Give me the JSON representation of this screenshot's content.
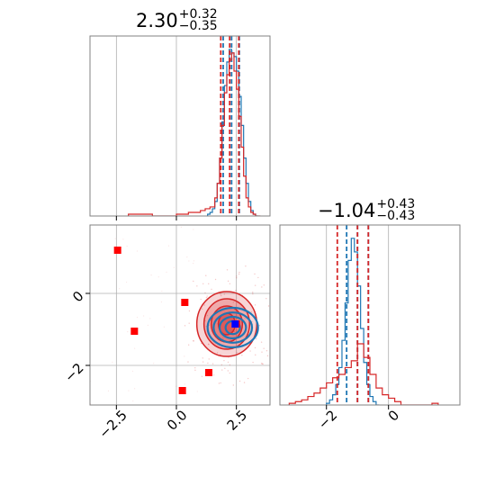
{
  "chart_data": {
    "type": "corner",
    "parameters": [
      "",
      ""
    ],
    "colors": {
      "blue": "#1f77b4",
      "red": "#d62728",
      "marker_red": "#ff0000",
      "marker_blue": "#0000ff"
    },
    "grid": true,
    "panels": [
      {
        "id": "hist-param1",
        "type": "step-histogram",
        "title": {
          "value": "2.30",
          "upper": "+0.32",
          "lower": "−0.35"
        },
        "xlim": [
          -3.6,
          3.9
        ],
        "x_ticks": [
          -2.5,
          0.0,
          2.5
        ],
        "series": [
          {
            "name": "",
            "color": "blue",
            "quantiles": [
              1.95,
              2.3,
              2.62
            ],
            "bin_edges": [
              1.3,
              1.4,
              1.5,
              1.6,
              1.7,
              1.8,
              1.9,
              2.0,
              2.1,
              2.2,
              2.3,
              2.4,
              2.5,
              2.6,
              2.7,
              2.8,
              2.9,
              3.0,
              3.1,
              3.2,
              3.3,
              3.4
            ],
            "counts": [
              1,
              2,
              4,
              8,
              18,
              32,
              52,
              72,
              85,
              92,
              90,
              88,
              80,
              66,
              50,
              32,
              18,
              8,
              3,
              1,
              0
            ]
          },
          {
            "name": "",
            "color": "red",
            "quantiles": [
              1.85,
              2.22,
              2.6
            ],
            "bin_edges": [
              -2.0,
              -1.0,
              0.0,
              0.5,
              1.0,
              1.2,
              1.4,
              1.6,
              1.7,
              1.8,
              1.9,
              2.0,
              2.1,
              2.2,
              2.3,
              2.4,
              2.5,
              2.6,
              2.7,
              2.8,
              2.9,
              3.0,
              3.1,
              3.2,
              3.3,
              3.5
            ],
            "counts": [
              1,
              0,
              1,
              2,
              3,
              4,
              5,
              10,
              18,
              32,
              50,
              68,
              78,
              86,
              90,
              80,
              70,
              55,
              38,
              22,
              10,
              5,
              2,
              1,
              0
            ]
          }
        ]
      },
      {
        "id": "hist-param2",
        "type": "step-histogram",
        "title": {
          "value": "−1.04",
          "upper": "+0.43",
          "lower": "−0.43"
        },
        "xlim": [
          -3.5,
          2.3
        ],
        "x_ticks": [
          -2,
          0
        ],
        "series": [
          {
            "name": "",
            "color": "blue",
            "quantiles": [
              -1.35,
              -1.0,
              -0.65
            ],
            "bin_edges": [
              -2.0,
              -1.9,
              -1.8,
              -1.7,
              -1.6,
              -1.5,
              -1.4,
              -1.3,
              -1.2,
              -1.1,
              -1.0,
              -0.9,
              -0.8,
              -0.7,
              -0.6,
              -0.5,
              -0.4,
              -0.3
            ],
            "counts": [
              1,
              3,
              6,
              12,
              22,
              38,
              60,
              85,
              98,
              90,
              70,
              45,
              25,
              12,
              5,
              2,
              0
            ]
          },
          {
            "name": "",
            "color": "red",
            "quantiles": [
              -1.65,
              -1.0,
              -0.65
            ],
            "bin_edges": [
              -3.2,
              -3.0,
              -2.8,
              -2.6,
              -2.4,
              -2.2,
              -2.0,
              -1.8,
              -1.6,
              -1.4,
              -1.2,
              -1.0,
              -0.8,
              -0.6,
              -0.4,
              -0.2,
              0.0,
              0.2,
              0.4,
              1.4,
              1.6
            ],
            "counts": [
              1,
              2,
              3,
              5,
              7,
              10,
              13,
              16,
              18,
              22,
              26,
              36,
              28,
              18,
              10,
              6,
              4,
              2,
              0,
              1
            ]
          }
        ]
      },
      {
        "id": "joint-param1-param2",
        "type": "2d-contour",
        "xlim": [
          -3.6,
          3.9
        ],
        "ylim": [
          -3.1,
          1.9
        ],
        "x_ticks": [
          -2.5,
          0.0,
          2.5
        ],
        "y_ticks": [
          -2,
          0
        ],
        "red_contours": {
          "center": [
            2.1,
            -0.85
          ],
          "half_widths": [
            [
              1.25,
              0.9
            ],
            [
              0.95,
              0.7
            ],
            [
              0.65,
              0.5
            ],
            [
              0.35,
              0.3
            ]
          ]
        },
        "blue_contours": {
          "center": [
            2.35,
            -0.95
          ],
          "half_widths": [
            [
              1.05,
              0.55
            ],
            [
              0.8,
              0.42
            ],
            [
              0.55,
              0.3
            ],
            [
              0.3,
              0.18
            ]
          ]
        },
        "red_markers": [
          [
            -2.45,
            1.2
          ],
          [
            -1.75,
            -1.05
          ],
          [
            0.35,
            -0.25
          ],
          [
            1.35,
            -2.2
          ],
          [
            0.25,
            -2.7
          ],
          [
            2.5,
            -0.85
          ]
        ],
        "blue_marker": [
          2.45,
          -0.85
        ]
      }
    ]
  }
}
